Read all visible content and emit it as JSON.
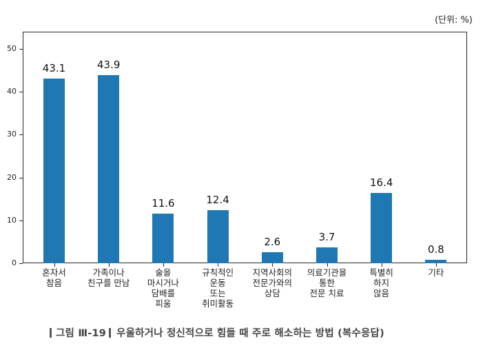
{
  "unit_label": "(단위:  %)",
  "caption": {
    "figure_number": "그림  Ⅲ-19",
    "title": "우울하거나 정신적으로 힘들 때 주로 해소하는 방법 (복수응답)"
  },
  "chart_data": {
    "type": "bar",
    "title": "우울하거나 정신적으로 힘들 때 주로 해소하는 방법 (복수응답)",
    "xlabel": "",
    "ylabel": "",
    "unit": "%",
    "ylim": [
      0,
      50
    ],
    "yticks": [
      0,
      10,
      20,
      30,
      40,
      50
    ],
    "grid": false,
    "legend": null,
    "color": "#1f77b4",
    "categories": [
      "혼자서\n참음",
      "가족이나\n친구를 만남",
      "술을\n마시거나\n담배를\n피움",
      "규칙적인\n운동\n또는\n취미활동",
      "지역사회의\n전문가와의\n상담",
      "의료기관을\n통한\n전문 치료",
      "특별히\n하지\n않음",
      "기타"
    ],
    "values": [
      43.1,
      43.9,
      11.6,
      12.4,
      2.6,
      3.7,
      16.4,
      0.8
    ],
    "value_labels": [
      "43.1",
      "43.9",
      "11.6",
      "12.4",
      "2.6",
      "3.7",
      "16.4",
      "0.8"
    ]
  }
}
